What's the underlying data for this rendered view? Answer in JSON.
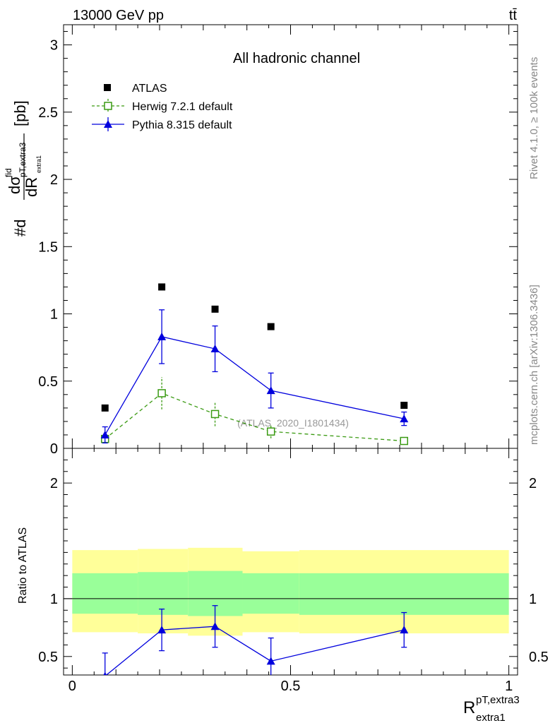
{
  "header": {
    "energy_label": "13000 GeV pp",
    "process_label": "tt̄"
  },
  "side_labels": {
    "rivet": "Rivet 4.1.0, ≥ 100k events",
    "mcplots": "mcplots.cern.ch [arXiv:1306.3436]"
  },
  "colors": {
    "atlas": "#000000",
    "herwig": "#3a9a12",
    "pythia": "#0000dd",
    "band_outer": "#ffff99",
    "band_inner": "#99ff99"
  },
  "chart_data": [
    {
      "type": "scatter",
      "panel": "main",
      "title": "All hadronic channel",
      "watermark": "(ATLAS_2020_I1801434)",
      "ylabel_parts": {
        "prefix": "#d",
        "num": "dσ",
        "sup": "fid",
        "den": "dR",
        "sub_num": "pT,extra3",
        "sub_den": "extra1",
        "unit": "[pb]"
      },
      "xlim": [
        -0.02,
        1.02
      ],
      "ylim": [
        0,
        3.15
      ],
      "yticks": [
        0,
        0.5,
        1,
        1.5,
        2,
        2.5,
        3
      ],
      "ytick_labels": [
        "0",
        "0.5",
        "1",
        "1.5",
        "2",
        "2.5",
        "3"
      ],
      "legend_position": "top-left",
      "series": [
        {
          "name": "ATLAS",
          "marker": "filled-square",
          "x": [
            0.075,
            0.205,
            0.327,
            0.455,
            0.76
          ],
          "y": [
            0.3,
            1.2,
            1.035,
            0.905,
            0.32
          ]
        },
        {
          "name": "Herwig 7.2.1 default",
          "marker": "open-square",
          "line": "dashed",
          "x": [
            0.075,
            0.205,
            0.327,
            0.455,
            0.76
          ],
          "y": [
            0.07,
            0.41,
            0.255,
            0.125,
            0.055
          ],
          "err": [
            0.03,
            0.12,
            0.09,
            0.05,
            0.01
          ]
        },
        {
          "name": "Pythia 8.315 default",
          "marker": "filled-triangle",
          "line": "solid",
          "x": [
            0.075,
            0.205,
            0.327,
            0.455,
            0.76
          ],
          "y": [
            0.1,
            0.83,
            0.74,
            0.43,
            0.22
          ],
          "err": [
            0.06,
            0.2,
            0.17,
            0.13,
            0.05
          ]
        }
      ]
    },
    {
      "type": "line",
      "panel": "ratio",
      "ylabel": "Ratio to ATLAS",
      "xlabel_parts": {
        "base": "R",
        "sup": "pT,extra3",
        "sub": "extra1"
      },
      "xlim": [
        -0.02,
        1.02
      ],
      "ylim": [
        0.34,
        2.3
      ],
      "xticks": [
        0,
        0.5,
        1
      ],
      "xtick_labels": [
        "0",
        "0.5",
        "1"
      ],
      "yticks": [
        0.5,
        1,
        2
      ],
      "ytick_labels": [
        "0.5",
        "1",
        "2"
      ],
      "reference_line": 1,
      "bins": [
        {
          "lo": 0.0,
          "hi": 0.15,
          "outer": [
            0.71,
            1.42
          ],
          "inner": [
            0.87,
            1.22
          ]
        },
        {
          "lo": 0.15,
          "hi": 0.265,
          "outer": [
            0.7,
            1.43
          ],
          "inner": [
            0.86,
            1.23
          ]
        },
        {
          "lo": 0.265,
          "hi": 0.39,
          "outer": [
            0.68,
            1.44
          ],
          "inner": [
            0.85,
            1.24
          ]
        },
        {
          "lo": 0.39,
          "hi": 0.52,
          "outer": [
            0.71,
            1.41
          ],
          "inner": [
            0.87,
            1.22
          ]
        },
        {
          "lo": 0.52,
          "hi": 1.0,
          "outer": [
            0.7,
            1.42
          ],
          "inner": [
            0.86,
            1.22
          ]
        }
      ],
      "series": [
        {
          "name": "Pythia 8.315 default",
          "x": [
            0.075,
            0.205,
            0.327,
            0.455,
            0.76
          ],
          "y": [
            0.33,
            0.73,
            0.76,
            0.46,
            0.73
          ],
          "err": [
            0.2,
            0.18,
            0.18,
            0.2,
            0.15
          ]
        }
      ]
    }
  ]
}
